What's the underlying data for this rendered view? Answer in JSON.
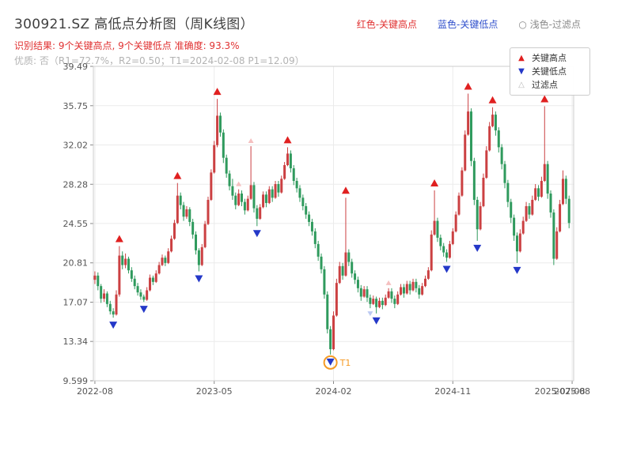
{
  "header": {
    "title": "300921.SZ 高低点分析图（周K线图）",
    "legend_inline": {
      "high": "红色-关键高点",
      "low": "蓝色-关键低点",
      "filtered": "○ 浅色-过滤点"
    },
    "legend_inline_colors": {
      "high": "#e03131",
      "low": "#3050cc",
      "filtered": "#8a8a8a"
    },
    "result_line": "识别结果: 9个关键高点, 9个关键低点  准确度: 93.3%",
    "result_color": "#e03131",
    "quality_line": "优质: 否（R1=72.7%，R2=0.50；T1=2024-02-08 P1=12.09）",
    "quality_color": "#b3b3b3"
  },
  "legend_box": {
    "items": [
      {
        "label": "关键高点",
        "icon": "▲",
        "color": "#e02020"
      },
      {
        "label": "关键低点",
        "icon": "▼",
        "color": "#2438c8"
      },
      {
        "label": "过滤点",
        "icon": "△",
        "color": "#b9b9b9"
      }
    ]
  },
  "chart_data": {
    "type": "candlestick",
    "title": "300921.SZ 高低点分析图（周K线图）",
    "ylim": [
      9.599,
      39.49
    ],
    "y_ticks": [
      39.49,
      35.75,
      32.02,
      28.28,
      24.55,
      20.81,
      17.07,
      13.34,
      9.599
    ],
    "y_tick_labels": [
      "39.49",
      "35.75",
      "32.02",
      "28.28",
      "24.55",
      "20.81",
      "17.07",
      "13.34",
      "9.599"
    ],
    "x_ticks": [
      {
        "week": 0,
        "label": "2022-08"
      },
      {
        "week": 39,
        "label": "2023-05"
      },
      {
        "week": 78,
        "label": "2024-02"
      },
      {
        "week": 117,
        "label": "2024-11"
      },
      {
        "week": 156,
        "label": "2025-08"
      }
    ],
    "x_extra_label": {
      "week": 152,
      "label": "2025-07-08"
    },
    "weeks_total": 157,
    "colors": {
      "up": "#cb4042",
      "down": "#2f9a5d",
      "key_high": "#e02020",
      "key_low": "#2438c8",
      "filtered_high": "#f5c0c0",
      "filtered_low": "#bccaf2",
      "t1": "#f59a23",
      "grid": "#ebebeb",
      "border": "#cccccc",
      "axis_text": "#555555"
    },
    "candles": [
      [
        19.2,
        20.0,
        18.8,
        19.6
      ],
      [
        19.6,
        19.9,
        18.2,
        18.6
      ],
      [
        18.6,
        18.8,
        17.0,
        17.4
      ],
      [
        17.4,
        18.3,
        17.1,
        17.9
      ],
      [
        17.9,
        18.1,
        16.6,
        16.9
      ],
      [
        16.9,
        17.2,
        15.9,
        16.2
      ],
      [
        16.2,
        16.5,
        15.6,
        15.9
      ],
      [
        15.9,
        18.2,
        15.8,
        17.8
      ],
      [
        17.8,
        22.4,
        17.6,
        21.5
      ],
      [
        21.5,
        21.9,
        20.2,
        20.6
      ],
      [
        20.6,
        21.7,
        20.3,
        21.2
      ],
      [
        21.2,
        21.4,
        19.8,
        20.1
      ],
      [
        20.1,
        20.4,
        19.0,
        19.3
      ],
      [
        19.3,
        19.6,
        18.3,
        18.6
      ],
      [
        18.6,
        18.9,
        17.7,
        18.0
      ],
      [
        18.0,
        18.3,
        17.3,
        17.6
      ],
      [
        17.6,
        17.8,
        17.1,
        17.3
      ],
      [
        17.3,
        18.5,
        17.2,
        18.2
      ],
      [
        18.2,
        19.7,
        18.1,
        19.4
      ],
      [
        19.4,
        19.6,
        18.7,
        19.0
      ],
      [
        19.0,
        20.1,
        18.9,
        19.8
      ],
      [
        19.8,
        20.9,
        19.7,
        20.6
      ],
      [
        20.6,
        21.6,
        20.5,
        21.3
      ],
      [
        21.3,
        21.5,
        20.5,
        20.8
      ],
      [
        20.8,
        22.2,
        20.7,
        21.9
      ],
      [
        21.9,
        23.4,
        21.8,
        23.1
      ],
      [
        23.1,
        24.9,
        23.0,
        24.6
      ],
      [
        24.6,
        28.4,
        24.5,
        27.2
      ],
      [
        27.2,
        27.5,
        25.9,
        26.3
      ],
      [
        26.3,
        26.6,
        24.8,
        25.2
      ],
      [
        25.2,
        26.2,
        25.0,
        25.9
      ],
      [
        25.9,
        26.1,
        24.3,
        24.7
      ],
      [
        24.7,
        25.0,
        23.1,
        23.5
      ],
      [
        23.5,
        23.8,
        21.6,
        22.0
      ],
      [
        22.0,
        22.2,
        20.0,
        20.6
      ],
      [
        20.6,
        22.6,
        20.5,
        22.3
      ],
      [
        22.3,
        24.8,
        22.2,
        24.5
      ],
      [
        24.5,
        27.1,
        24.4,
        26.8
      ],
      [
        26.8,
        29.7,
        26.7,
        29.4
      ],
      [
        29.4,
        32.4,
        29.3,
        32.0
      ],
      [
        32.0,
        36.4,
        31.8,
        34.8
      ],
      [
        34.8,
        35.1,
        32.8,
        33.2
      ],
      [
        33.2,
        33.5,
        30.3,
        30.8
      ],
      [
        30.8,
        31.1,
        28.9,
        29.3
      ],
      [
        29.3,
        29.6,
        27.7,
        28.1
      ],
      [
        28.1,
        28.8,
        26.8,
        27.2
      ],
      [
        27.2,
        27.5,
        25.9,
        26.3
      ],
      [
        26.3,
        27.8,
        26.2,
        27.4
      ],
      [
        27.4,
        27.7,
        26.2,
        26.6
      ],
      [
        26.6,
        26.9,
        25.4,
        25.8
      ],
      [
        25.8,
        27.2,
        25.7,
        26.9
      ],
      [
        26.9,
        31.9,
        26.8,
        28.2
      ],
      [
        28.2,
        28.5,
        25.6,
        26.0
      ],
      [
        26.0,
        26.3,
        24.3,
        25.0
      ],
      [
        25.0,
        26.4,
        24.9,
        26.1
      ],
      [
        26.1,
        27.6,
        26.0,
        27.3
      ],
      [
        27.3,
        27.6,
        26.1,
        26.5
      ],
      [
        26.5,
        28.1,
        26.4,
        27.8
      ],
      [
        27.8,
        28.1,
        26.6,
        27.0
      ],
      [
        27.0,
        28.6,
        26.9,
        28.3
      ],
      [
        28.3,
        28.6,
        27.1,
        27.5
      ],
      [
        27.5,
        29.1,
        27.4,
        28.8
      ],
      [
        28.8,
        30.4,
        28.7,
        30.1
      ],
      [
        30.1,
        31.8,
        30.0,
        31.2
      ],
      [
        31.2,
        31.5,
        29.4,
        29.8
      ],
      [
        29.8,
        30.1,
        28.2,
        28.6
      ],
      [
        28.6,
        28.9,
        27.5,
        27.9
      ],
      [
        27.9,
        28.2,
        26.6,
        27.0
      ],
      [
        27.0,
        27.3,
        25.8,
        26.2
      ],
      [
        26.2,
        26.5,
        25.0,
        25.4
      ],
      [
        25.4,
        25.7,
        24.3,
        24.7
      ],
      [
        24.7,
        25.0,
        23.4,
        23.8
      ],
      [
        23.8,
        24.1,
        22.2,
        22.6
      ],
      [
        22.6,
        22.9,
        21.0,
        21.4
      ],
      [
        21.4,
        21.7,
        19.8,
        20.2
      ],
      [
        20.2,
        20.5,
        17.4,
        17.8
      ],
      [
        17.8,
        18.1,
        14.1,
        14.5
      ],
      [
        14.5,
        14.8,
        12.09,
        12.6
      ],
      [
        12.6,
        16.2,
        12.5,
        15.8
      ],
      [
        15.8,
        19.3,
        15.7,
        18.9
      ],
      [
        18.9,
        20.9,
        18.8,
        20.5
      ],
      [
        20.5,
        20.8,
        19.2,
        19.6
      ],
      [
        19.6,
        27.0,
        19.5,
        21.8
      ],
      [
        21.8,
        22.1,
        20.5,
        20.9
      ],
      [
        20.9,
        21.2,
        19.4,
        19.8
      ],
      [
        19.8,
        20.1,
        18.8,
        19.2
      ],
      [
        19.2,
        19.5,
        18.0,
        18.4
      ],
      [
        18.4,
        18.7,
        17.2,
        17.6
      ],
      [
        17.6,
        18.6,
        17.5,
        18.3
      ],
      [
        18.3,
        18.6,
        17.1,
        17.5
      ],
      [
        17.5,
        17.8,
        16.5,
        16.9
      ],
      [
        16.9,
        17.7,
        16.8,
        17.4
      ],
      [
        17.4,
        17.6,
        16.0,
        16.6
      ],
      [
        16.6,
        17.5,
        16.5,
        17.2
      ],
      [
        17.2,
        17.5,
        16.4,
        16.8
      ],
      [
        16.8,
        17.8,
        16.7,
        17.5
      ],
      [
        17.5,
        18.4,
        17.4,
        18.1
      ],
      [
        18.1,
        18.4,
        17.0,
        17.4
      ],
      [
        17.4,
        17.7,
        16.5,
        16.9
      ],
      [
        16.9,
        18.1,
        16.8,
        17.8
      ],
      [
        17.8,
        18.8,
        17.7,
        18.5
      ],
      [
        18.5,
        18.8,
        17.5,
        17.9
      ],
      [
        17.9,
        19.1,
        17.8,
        18.8
      ],
      [
        18.8,
        19.1,
        17.8,
        18.2
      ],
      [
        18.2,
        19.3,
        18.1,
        19.0
      ],
      [
        19.0,
        19.3,
        18.0,
        18.4
      ],
      [
        18.4,
        18.7,
        17.4,
        17.8
      ],
      [
        17.8,
        18.9,
        17.7,
        18.6
      ],
      [
        18.6,
        19.6,
        18.5,
        19.3
      ],
      [
        19.3,
        20.4,
        19.2,
        20.1
      ],
      [
        20.1,
        23.9,
        20.0,
        23.5
      ],
      [
        23.5,
        27.7,
        23.4,
        24.8
      ],
      [
        24.8,
        25.1,
        22.8,
        23.2
      ],
      [
        23.2,
        23.5,
        22.0,
        22.4
      ],
      [
        22.4,
        22.7,
        21.4,
        21.8
      ],
      [
        21.8,
        22.1,
        20.9,
        21.3
      ],
      [
        21.3,
        22.9,
        21.2,
        22.6
      ],
      [
        22.6,
        24.1,
        22.5,
        23.8
      ],
      [
        23.8,
        25.7,
        23.7,
        25.4
      ],
      [
        25.4,
        27.5,
        25.3,
        27.2
      ],
      [
        27.2,
        29.9,
        27.1,
        29.6
      ],
      [
        29.6,
        33.4,
        29.5,
        33.0
      ],
      [
        33.0,
        36.9,
        32.9,
        35.2
      ],
      [
        35.2,
        35.5,
        30.0,
        30.5
      ],
      [
        30.5,
        30.8,
        26.3,
        26.8
      ],
      [
        26.8,
        27.1,
        22.9,
        24.0
      ],
      [
        24.0,
        26.6,
        23.9,
        26.2
      ],
      [
        26.2,
        29.3,
        26.1,
        28.9
      ],
      [
        28.9,
        31.9,
        28.8,
        31.5
      ],
      [
        31.5,
        34.2,
        31.4,
        33.8
      ],
      [
        33.8,
        35.6,
        33.7,
        34.9
      ],
      [
        34.9,
        35.2,
        32.9,
        33.4
      ],
      [
        33.4,
        33.7,
        31.3,
        31.8
      ],
      [
        31.8,
        32.1,
        29.7,
        30.2
      ],
      [
        30.2,
        30.5,
        27.9,
        28.4
      ],
      [
        28.4,
        28.7,
        26.1,
        26.6
      ],
      [
        26.6,
        26.9,
        24.6,
        25.1
      ],
      [
        25.1,
        25.4,
        22.9,
        23.4
      ],
      [
        23.4,
        23.7,
        20.8,
        21.9
      ],
      [
        21.9,
        24.0,
        21.8,
        23.6
      ],
      [
        23.6,
        25.2,
        23.5,
        24.8
      ],
      [
        24.8,
        26.6,
        24.7,
        26.2
      ],
      [
        26.2,
        26.5,
        25.0,
        25.4
      ],
      [
        25.4,
        27.2,
        25.3,
        26.8
      ],
      [
        26.8,
        28.3,
        26.7,
        27.9
      ],
      [
        27.9,
        28.2,
        26.7,
        27.1
      ],
      [
        27.1,
        29.0,
        27.0,
        28.6
      ],
      [
        28.6,
        35.7,
        28.5,
        30.2
      ],
      [
        30.2,
        30.5,
        26.9,
        27.4
      ],
      [
        27.4,
        27.7,
        25.1,
        25.6
      ],
      [
        25.6,
        25.9,
        20.6,
        21.2
      ],
      [
        21.2,
        24.2,
        21.1,
        23.8
      ],
      [
        23.8,
        26.8,
        23.7,
        26.4
      ],
      [
        26.4,
        29.6,
        26.3,
        28.8
      ],
      [
        28.8,
        29.1,
        26.4,
        26.9
      ],
      [
        26.9,
        27.2,
        24.1,
        24.6
      ]
    ],
    "key_highs": [
      {
        "week": 8,
        "price": 22.4
      },
      {
        "week": 27,
        "price": 28.4
      },
      {
        "week": 40,
        "price": 36.4
      },
      {
        "week": 63,
        "price": 31.8
      },
      {
        "week": 82,
        "price": 27.0
      },
      {
        "week": 111,
        "price": 27.7
      },
      {
        "week": 122,
        "price": 36.9
      },
      {
        "week": 130,
        "price": 35.6
      },
      {
        "week": 147,
        "price": 35.7
      }
    ],
    "key_lows": [
      {
        "week": 6,
        "price": 15.6
      },
      {
        "week": 16,
        "price": 17.1
      },
      {
        "week": 34,
        "price": 20.0
      },
      {
        "week": 53,
        "price": 24.3
      },
      {
        "week": 77,
        "price": 12.09
      },
      {
        "week": 92,
        "price": 16.0
      },
      {
        "week": 115,
        "price": 20.9
      },
      {
        "week": 125,
        "price": 22.9
      },
      {
        "week": 138,
        "price": 20.8
      }
    ],
    "filtered_points": [
      {
        "week": 47,
        "price": 27.8,
        "dir": "high"
      },
      {
        "week": 51,
        "price": 31.9,
        "dir": "high"
      },
      {
        "week": 90,
        "price": 16.5,
        "dir": "low"
      },
      {
        "week": 96,
        "price": 18.4,
        "dir": "high"
      }
    ],
    "t1": {
      "week": 77,
      "price": 12.09,
      "label": "T1",
      "date": "2024-02-08"
    }
  }
}
